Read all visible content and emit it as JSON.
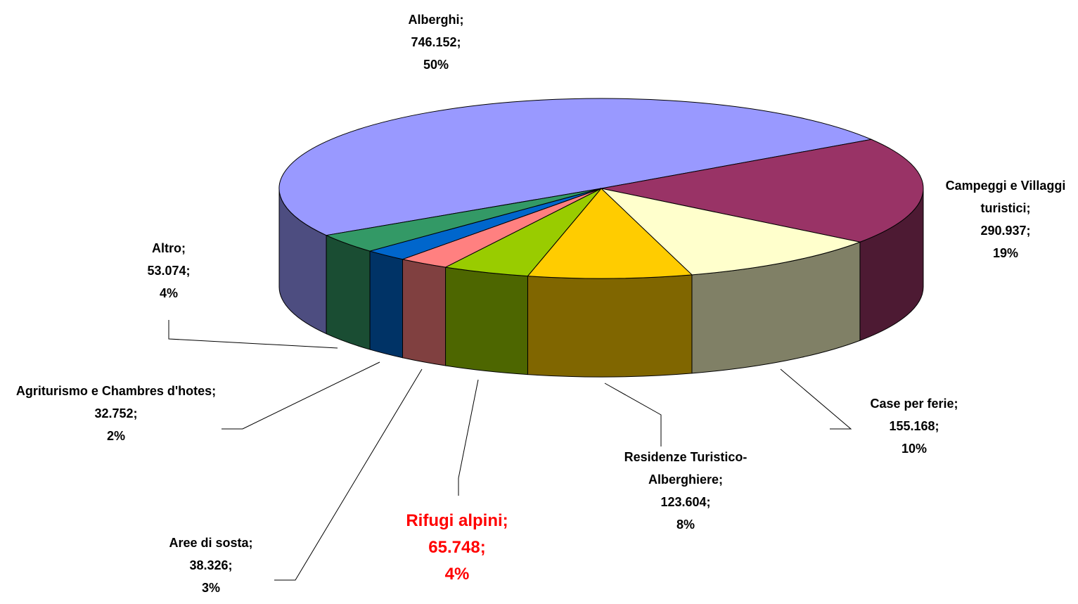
{
  "chart_data": {
    "type": "pie3d",
    "categories": [
      "Alberghi",
      "Campeggi e Villaggi turistici",
      "Case per ferie",
      "Residenze Turistico-Alberghiere",
      "Rifugi alpini",
      "Aree di sosta",
      "Agriturismo e Chambres d'hotes",
      "Altro"
    ],
    "values": [
      746152,
      290937,
      155168,
      123604,
      65748,
      38326,
      32752,
      53074
    ],
    "value_labels": [
      "746.152",
      "290.937",
      "155.168",
      "123.604",
      "65.748",
      "38.326",
      "32.752",
      "53.074"
    ],
    "percents": [
      50,
      19,
      10,
      8,
      4,
      3,
      2,
      4
    ],
    "percent_labels": [
      "50%",
      "19%",
      "10%",
      "8%",
      "4%",
      "3%",
      "2%",
      "4%"
    ],
    "separator": ";",
    "colors": [
      "#9999ff",
      "#993366",
      "#ffffcc",
      "#ffcc00",
      "#99cc00",
      "#ff8080",
      "#0066cc",
      "#339966"
    ],
    "highlight": {
      "index": 4,
      "color": "#ff0000"
    }
  }
}
